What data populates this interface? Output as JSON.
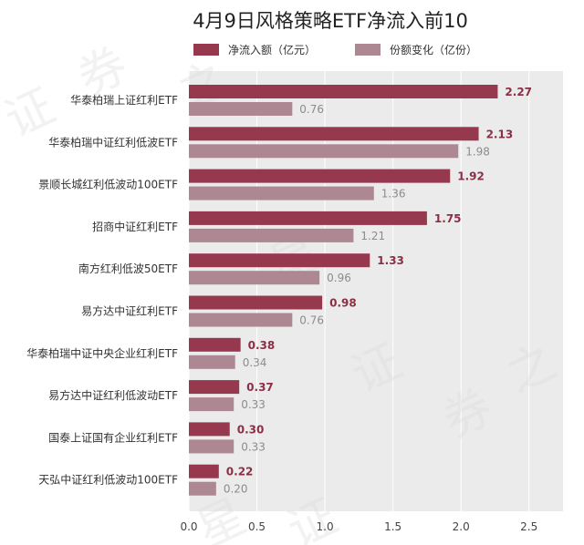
{
  "chart_data": {
    "type": "bar",
    "orientation": "horizontal",
    "title": "4月9日风格策略ETF净流入前10",
    "categories": [
      "华泰柏瑞上证红利ETF",
      "华泰柏瑞中证红利低波ETF",
      "景顺长城红利低波动100ETF",
      "招商中证红利ETF",
      "南方红利低波50ETF",
      "易方达中证红利ETF",
      "华泰柏瑞中证中央企业红利ETF",
      "易方达中证红利低波动ETF",
      "国泰上证国有企业红利ETF",
      "天弘中证红利低波动100ETF"
    ],
    "series": [
      {
        "name": "净流入额（亿元）",
        "values": [
          2.27,
          2.13,
          1.92,
          1.75,
          1.33,
          0.98,
          0.38,
          0.37,
          0.3,
          0.22
        ],
        "labels": [
          "2.27",
          "2.13",
          "1.92",
          "1.75",
          "1.33",
          "0.98",
          "0.38",
          "0.37",
          "0.30",
          "0.22"
        ],
        "color": "#96394f"
      },
      {
        "name": "份额变化（亿份）",
        "values": [
          0.76,
          1.98,
          1.36,
          1.21,
          0.96,
          0.76,
          0.34,
          0.33,
          0.33,
          0.2
        ],
        "labels": [
          "0.76",
          "1.98",
          "1.36",
          "1.21",
          "0.96",
          "0.76",
          "0.34",
          "0.33",
          "0.33",
          "0.20"
        ],
        "color": "#ad8791"
      }
    ],
    "xlim": [
      0,
      2.75
    ],
    "xticks": [
      "0.0",
      "0.5",
      "1.0",
      "1.5",
      "2.0",
      "2.5"
    ],
    "xtick_values": [
      0,
      0.5,
      1.0,
      1.5,
      2.0,
      2.5
    ],
    "grid": true,
    "legend_position": "top",
    "watermark": "证券之星",
    "colors": {
      "plot_background": "#ebebeb",
      "grid": "#ffffff",
      "series_1": "#96394f",
      "series_2": "#ad8791"
    }
  }
}
